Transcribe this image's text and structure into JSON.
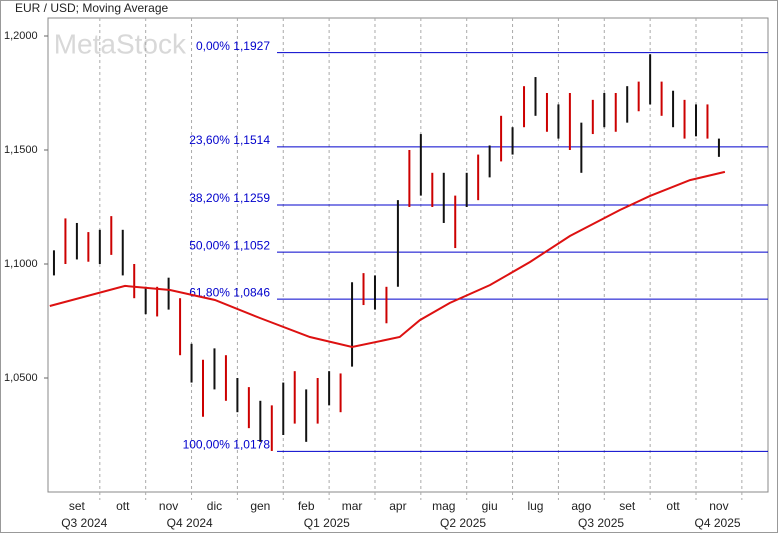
{
  "chart_data": {
    "type": "ohlc",
    "title": "EUR / USD; Moving Average",
    "watermark": "MetaStock",
    "xlim": [
      -0.13,
      15.57
    ],
    "ylim": [
      1.0,
      1.2079
    ],
    "yticks": [
      {
        "value": 1.2,
        "label": "1,2000"
      },
      {
        "value": 1.15,
        "label": "1,1500"
      },
      {
        "value": 1.1,
        "label": "1,1000"
      },
      {
        "value": 1.05,
        "label": "1,0500"
      }
    ],
    "xticks": [
      {
        "value": 0.5,
        "label": "set"
      },
      {
        "value": 1.5,
        "label": "ott"
      },
      {
        "value": 2.5,
        "label": "nov"
      },
      {
        "value": 3.5,
        "label": "dic"
      },
      {
        "value": 4.5,
        "label": "gen"
      },
      {
        "value": 5.5,
        "label": "feb"
      },
      {
        "value": 6.5,
        "label": "mar"
      },
      {
        "value": 7.5,
        "label": "apr"
      },
      {
        "value": 8.5,
        "label": "mag"
      },
      {
        "value": 9.5,
        "label": "giu"
      },
      {
        "value": 10.5,
        "label": "lug"
      },
      {
        "value": 11.5,
        "label": "ago"
      },
      {
        "value": 12.5,
        "label": "set"
      },
      {
        "value": 13.5,
        "label": "ott"
      },
      {
        "value": 14.5,
        "label": "nov"
      }
    ],
    "quarters": [
      {
        "value": 0.66,
        "label": "Q3 2024"
      },
      {
        "value": 2.96,
        "label": "Q4 2024"
      },
      {
        "value": 5.95,
        "label": "Q1 2025"
      },
      {
        "value": 8.92,
        "label": "Q2 2025"
      },
      {
        "value": 11.93,
        "label": "Q3 2025"
      },
      {
        "value": 14.47,
        "label": "Q4 2025"
      }
    ],
    "levels": [
      {
        "value": 1.1927,
        "label": "0,00% 1,1927"
      },
      {
        "value": 1.1514,
        "label": "23,60% 1,1514"
      },
      {
        "value": 1.1259,
        "label": "38,20% 1,1259"
      },
      {
        "value": 1.1052,
        "label": "50,00% 1,1052"
      },
      {
        "value": 1.0846,
        "label": "61,80% 1,0846"
      },
      {
        "value": 1.0178,
        "label": "100,00% 1,0178"
      }
    ],
    "level_color": "#0000cc",
    "x": [
      0.0,
      0.25,
      0.5,
      0.75,
      1.0,
      1.25,
      1.5,
      1.75,
      2.0,
      2.25,
      2.5,
      2.75,
      3.0,
      3.25,
      3.5,
      3.75,
      4.0,
      4.25,
      4.5,
      4.75,
      5.0,
      5.25,
      5.5,
      5.75,
      6.0,
      6.25,
      6.5,
      6.75,
      7.0,
      7.25,
      7.5,
      7.75,
      8.0,
      8.25,
      8.5,
      8.75,
      9.0,
      9.25,
      9.5,
      9.75,
      10.0,
      10.25,
      10.5,
      10.75,
      11.0,
      11.25,
      11.5,
      11.75,
      12.0,
      12.25,
      12.5,
      12.75,
      13.0,
      13.25,
      13.5,
      13.75,
      14.0,
      14.25,
      14.5
    ],
    "low": [
      1.095,
      1.1,
      1.102,
      1.101,
      1.1,
      1.104,
      1.095,
      1.085,
      1.078,
      1.077,
      1.08,
      1.06,
      1.048,
      1.033,
      1.045,
      1.04,
      1.035,
      1.028,
      1.022,
      1.018,
      1.025,
      1.03,
      1.022,
      1.03,
      1.038,
      1.035,
      1.055,
      1.082,
      1.08,
      1.074,
      1.09,
      1.125,
      1.13,
      1.125,
      1.118,
      1.107,
      1.125,
      1.128,
      1.138,
      1.145,
      1.148,
      1.16,
      1.165,
      1.158,
      1.155,
      1.15,
      1.14,
      1.157,
      1.16,
      1.158,
      1.162,
      1.167,
      1.17,
      1.165,
      1.16,
      1.155,
      1.156,
      1.155,
      1.147
    ],
    "high": [
      1.106,
      1.12,
      1.118,
      1.114,
      1.115,
      1.121,
      1.115,
      1.1,
      1.09,
      1.09,
      1.094,
      1.085,
      1.065,
      1.058,
      1.063,
      1.06,
      1.05,
      1.046,
      1.04,
      1.038,
      1.048,
      1.053,
      1.045,
      1.05,
      1.053,
      1.052,
      1.092,
      1.096,
      1.095,
      1.09,
      1.128,
      1.15,
      1.157,
      1.14,
      1.14,
      1.13,
      1.14,
      1.148,
      1.152,
      1.165,
      1.16,
      1.178,
      1.182,
      1.175,
      1.17,
      1.175,
      1.162,
      1.172,
      1.175,
      1.175,
      1.178,
      1.18,
      1.192,
      1.18,
      1.176,
      1.172,
      1.17,
      1.17,
      1.155
    ],
    "ma": {
      "color": "#dd1111",
      "x": [
        -0.09,
        1.55,
        2.53,
        3.51,
        4.49,
        5.58,
        6.5,
        7.54,
        7.98,
        8.63,
        9.51,
        10.38,
        11.25,
        12.34,
        12.99,
        13.87,
        14.63
      ],
      "values": [
        1.0816,
        1.0904,
        1.0886,
        1.0842,
        1.0763,
        1.068,
        1.0636,
        1.068,
        1.0754,
        1.0829,
        1.0908,
        1.1009,
        1.1123,
        1.1237,
        1.1298,
        1.1368,
        1.1404
      ]
    }
  }
}
